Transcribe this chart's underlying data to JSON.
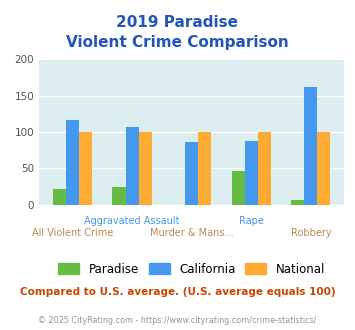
{
  "title_line1": "2019 Paradise",
  "title_line2": "Violent Crime Comparison",
  "categories": [
    "All Violent Crime",
    "Aggravated Assault",
    "Murder & Mans...",
    "Rape",
    "Robbery"
  ],
  "paradise": [
    22,
    24,
    0,
    46,
    6
  ],
  "california": [
    117,
    107,
    86,
    87,
    162
  ],
  "national": [
    100,
    100,
    100,
    100,
    100
  ],
  "colors": {
    "paradise": "#66bb44",
    "california": "#4499ee",
    "national": "#ffaa33"
  },
  "ylim": [
    0,
    200
  ],
  "yticks": [
    0,
    50,
    100,
    150,
    200
  ],
  "bg_color": "#ddeef0",
  "title_color": "#2255bb",
  "footer_text": "Compared to U.S. average. (U.S. average equals 100)",
  "footer_color": "#cc4400",
  "credit_text": "© 2025 CityRating.com - https://www.cityrating.com/crime-statistics/",
  "credit_color": "#8899aa",
  "xlabel_top": [
    "",
    "Aggravated Assault",
    "",
    "Rape",
    ""
  ],
  "xlabel_bot": [
    "All Violent Crime",
    "",
    "Murder & Mans...",
    "",
    "Robbery"
  ],
  "xlabel_top_color": "#4499ee",
  "xlabel_bot_color": "#bb8855"
}
